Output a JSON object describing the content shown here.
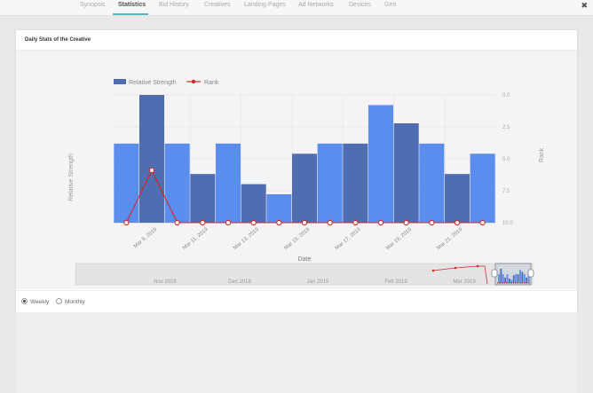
{
  "tabs": [
    {
      "label": "Synopsis",
      "active": false
    },
    {
      "label": "Statistics",
      "active": true
    },
    {
      "label": "Bid History",
      "active": false
    },
    {
      "label": "Creatives",
      "active": false
    },
    {
      "label": "Landing Pages",
      "active": false
    },
    {
      "label": "Ad Networks",
      "active": false
    },
    {
      "label": "Devices",
      "active": false
    },
    {
      "label": "Geo",
      "active": false
    }
  ],
  "close_icon": "close-x-icon",
  "panel": {
    "title": "Daily Stats of the Creative"
  },
  "chart_data": {
    "type": "bar",
    "categories": [
      "Mar 8, 2019",
      "Mar 9, 2019",
      "Mar 10, 2019",
      "Mar 11, 2019",
      "Mar 12, 2019",
      "Mar 13, 2019",
      "Mar 14, 2019",
      "Mar 15, 2019",
      "Mar 16, 2019",
      "Mar 17, 2019",
      "Mar 18, 2019",
      "Mar 19, 2019",
      "Mar 20, 2019",
      "Mar 21, 2019",
      "Mar 22, 2019"
    ],
    "tick_labels": [
      "Mar 9, 2019",
      "Mar 11, 2019",
      "Mar 13, 2019",
      "Mar 15, 2019",
      "Mar 17, 2019",
      "Mar 19, 2019",
      "Mar 21, 2019"
    ],
    "series": [
      {
        "name": "Relative Strength",
        "kind": "bar",
        "color": "#4f6db0",
        "values": [
          3.9,
          6.3,
          3.9,
          2.4,
          3.9,
          1.9,
          1.4,
          3.4,
          3.9,
          3.9,
          5.8,
          4.9,
          3.9,
          2.4,
          3.4
        ]
      },
      {
        "name": "Rank",
        "kind": "line",
        "axis": "right",
        "color": "#cc2b2b",
        "values": [
          10.0,
          5.9,
          10.0,
          10.0,
          10.0,
          10.0,
          10.0,
          10.0,
          10.0,
          10.0,
          10.0,
          10.0,
          10.0,
          10.0,
          10.0
        ]
      }
    ],
    "bar_colors": [
      "#5b8def",
      "#4f6db0",
      "#5b8def",
      "#4f6db0",
      "#5b8def",
      "#4f6db0",
      "#5b8def",
      "#4f6db0",
      "#5b8def",
      "#4f6db0",
      "#5b8def",
      "#4f6db0",
      "#5b8def",
      "#4f6db0",
      "#5b8def"
    ],
    "xlabel": "Date",
    "ylabel": "Relative Strength",
    "y2label": "Rank",
    "ylim": [
      0,
      6.3
    ],
    "y2_ticks": [
      "0.0",
      "2.5",
      "5.0",
      "7.5",
      "10.0"
    ],
    "y2lim": [
      0,
      10
    ],
    "y2_reversed": true,
    "legend_position": "top-left",
    "grid": true,
    "navigator": {
      "labels": [
        "Nov 2018",
        "Dec 2018",
        "Jan 2019",
        "Feb 2019",
        "Mar 2019"
      ]
    }
  },
  "aggregation": [
    {
      "label": "Weekly",
      "selected": true
    },
    {
      "label": "Monthly",
      "selected": false
    }
  ]
}
